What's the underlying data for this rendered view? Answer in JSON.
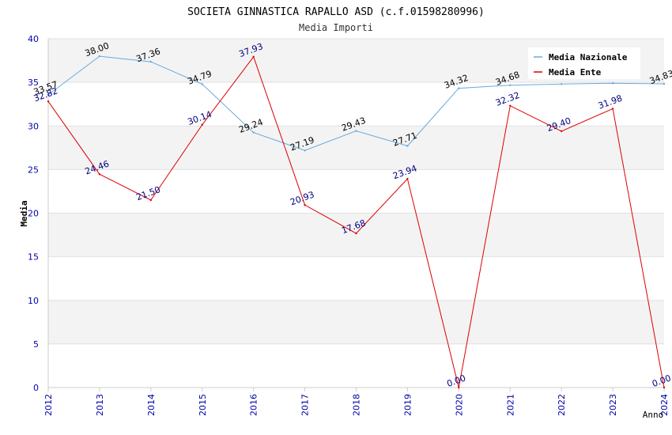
{
  "chart_data": {
    "type": "line",
    "title": "SOCIETA GINNASTICA RAPALLO ASD (c.f.01598280996)",
    "subtitle": "Media Importi",
    "xlabel": "Anno",
    "ylabel": "Media",
    "ylim": [
      0,
      40
    ],
    "yticks": [
      "0",
      "5",
      "10",
      "15",
      "20",
      "25",
      "30",
      "35",
      "40"
    ],
    "x": [
      "2012",
      "2013",
      "2014",
      "2015",
      "2016",
      "2017",
      "2018",
      "2019",
      "2020",
      "2021",
      "2022",
      "2023",
      "2024"
    ],
    "grid": true,
    "legend_position": "top-right",
    "series": [
      {
        "name": "Media Nazionale",
        "color": "#66aadd",
        "label_color": "#000000",
        "values": [
          33.57,
          38.0,
          37.36,
          34.79,
          29.24,
          27.19,
          29.43,
          27.71,
          34.32,
          34.68,
          34.8,
          34.9,
          34.83
        ],
        "labels": [
          "33.57",
          "38.00",
          "37.36",
          "34.79",
          "29.24",
          "27.19",
          "29.43",
          "27.71",
          "34.32",
          "34.68",
          null,
          null,
          "34.83"
        ]
      },
      {
        "name": "Media Ente",
        "color": "#dd0000",
        "label_color": "#000080",
        "values": [
          32.82,
          24.46,
          21.5,
          30.14,
          37.93,
          20.93,
          17.68,
          23.94,
          0.0,
          32.32,
          29.4,
          31.98,
          0.0
        ],
        "labels": [
          "32.82",
          "24.46",
          "21.50",
          "30.14",
          "37.93",
          "20.93",
          "17.68",
          "23.94",
          "0.00",
          "32.32",
          "29.40",
          "31.98",
          "0.00"
        ]
      }
    ]
  }
}
